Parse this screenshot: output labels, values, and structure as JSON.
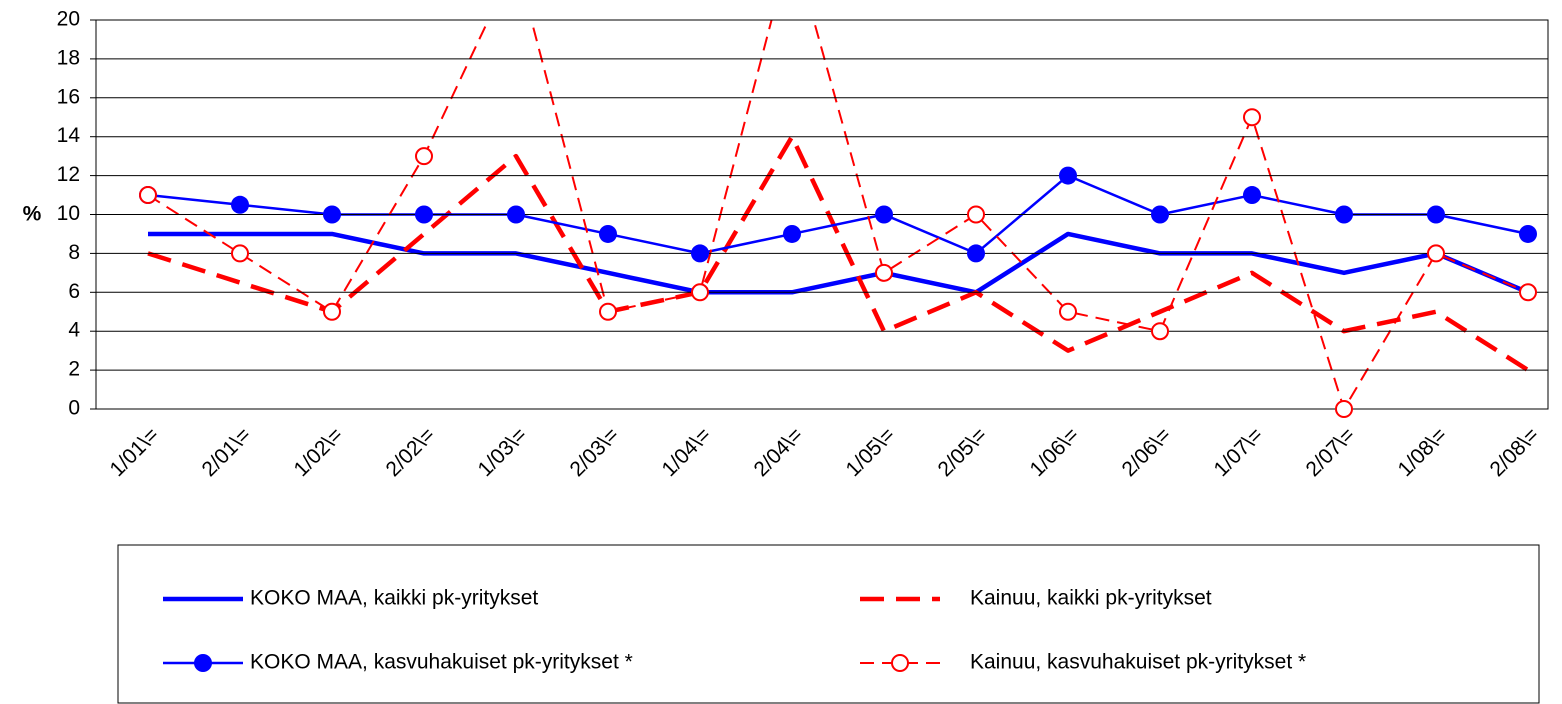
{
  "chart_data": {
    "type": "line",
    "ylabel": "%",
    "categories": [
      "1/01\\=",
      "2/01\\=",
      "1/02\\=",
      "2/02\\=",
      "1/03\\=",
      "2/03\\=",
      "1/04\\=",
      "2/04\\=",
      "1/05\\=",
      "2/05\\=",
      "1/06\\=",
      "2/06\\=",
      "1/07\\=",
      "2/07\\=",
      "1/08\\=",
      "2/08\\="
    ],
    "series": [
      {
        "name": "KOKO MAA, kaikki pk-yritykset",
        "color": "#0000ff",
        "values": [
          9,
          9,
          9,
          8,
          8,
          7,
          6,
          6,
          7,
          6,
          9,
          8,
          8,
          7,
          8,
          6
        ]
      },
      {
        "name": "Kainuu, kaikki pk-yritykset",
        "color": "#ff0000",
        "values": [
          8,
          6.5,
          5,
          9,
          13,
          5,
          6,
          14,
          4,
          6,
          3,
          5,
          7,
          4,
          5,
          2
        ]
      },
      {
        "name": "KOKO MAA, kasvuhakuiset pk-yritykset *",
        "color": "#0000ff",
        "values": [
          11,
          10.5,
          10,
          10,
          10,
          9,
          8,
          9,
          10,
          8,
          12,
          10,
          11,
          10,
          10,
          9
        ]
      },
      {
        "name": "Kainuu, kasvuhakuiset pk-yritykset *",
        "color": "#ff0000",
        "values": [
          11,
          8,
          5,
          13,
          23,
          5,
          6,
          24,
          7,
          10,
          5,
          4,
          15,
          0,
          8,
          6
        ]
      }
    ],
    "ylim": [
      0,
      20
    ],
    "yticks": [
      0,
      2,
      4,
      6,
      8,
      10,
      12,
      14,
      16,
      18,
      20
    ],
    "grid": true
  }
}
